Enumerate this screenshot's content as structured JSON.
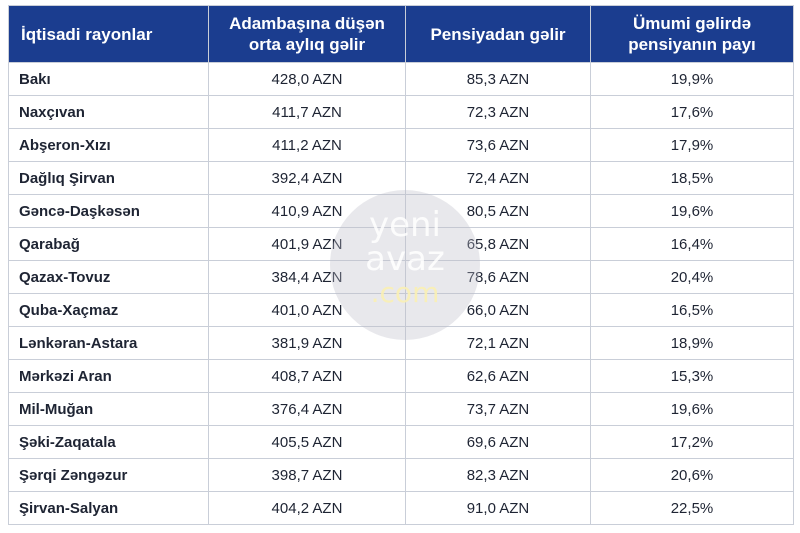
{
  "table": {
    "header": [
      "İqtisadi rayonlar",
      "Adambaşına düşən orta aylıq gəlir",
      "Pensiyadan gəlir",
      "Ümumi gəlirdə pensiyanın payı"
    ],
    "rows": [
      [
        "Bakı",
        "428,0 AZN",
        "85,3 AZN",
        "19,9%"
      ],
      [
        "Naxçıvan",
        "411,7 AZN",
        "72,3 AZN",
        "17,6%"
      ],
      [
        "Abşeron-Xızı",
        "411,2 AZN",
        "73,6 AZN",
        "17,9%"
      ],
      [
        "Dağlıq Şirvan",
        "392,4 AZN",
        "72,4 AZN",
        "18,5%"
      ],
      [
        "Gəncə-Daşkəsən",
        "410,9 AZN",
        "80,5 AZN",
        "19,6%"
      ],
      [
        "Qarabağ",
        "401,9 AZN",
        "65,8 AZN",
        "16,4%"
      ],
      [
        "Qazax-Tovuz",
        "384,4 AZN",
        "78,6 AZN",
        "20,4%"
      ],
      [
        "Quba-Xaçmaz",
        "401,0 AZN",
        "66,0 AZN",
        "16,5%"
      ],
      [
        "Lənkəran-Astara",
        "381,9 AZN",
        "72,1 AZN",
        "18,9%"
      ],
      [
        "Mərkəzi Aran",
        "408,7 AZN",
        "62,6 AZN",
        "15,3%"
      ],
      [
        "Mil-Muğan",
        "376,4 AZN",
        "73,7 AZN",
        "19,6%"
      ],
      [
        "Şəki-Zaqatala",
        "405,5 AZN",
        "69,6 AZN",
        "17,2%"
      ],
      [
        "Şərqi Zəngəzur",
        "398,7 AZN",
        "82,3 AZN",
        "20,6%"
      ],
      [
        "Şirvan-Salyan",
        "404,2 AZN",
        "91,0 AZN",
        "22,5%"
      ]
    ]
  },
  "watermark": [
    "yeni",
    "avaz",
    ".com"
  ]
}
